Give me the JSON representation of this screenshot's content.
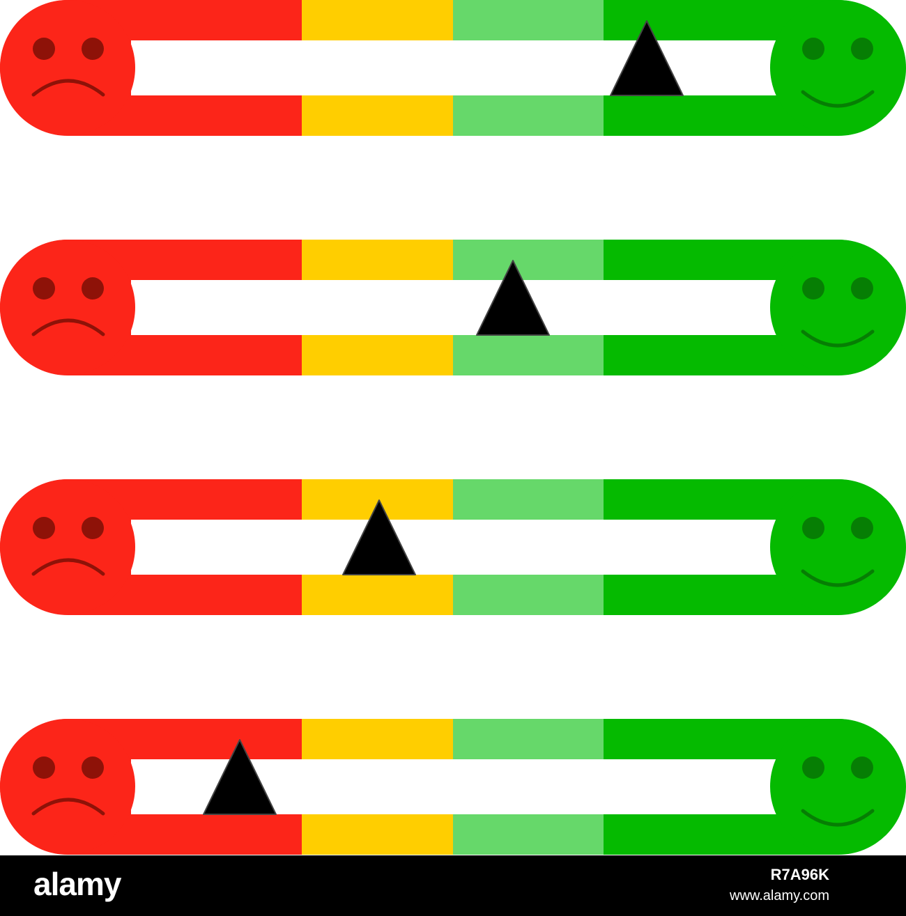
{
  "palette": {
    "red": "#fc2519",
    "yellow": "#ffce00",
    "light_green": "#66d86a",
    "green": "#05ba00",
    "sad_face_features": "#8e1208",
    "happy_face_features": "#067e04",
    "track": "#ffffff",
    "pointer": "#000000"
  },
  "icons": {
    "left": "sad-face-icon",
    "right": "happy-face-icon",
    "pointer": "triangle-pointer-icon"
  },
  "segments": [
    "red",
    "yellow",
    "light_green",
    "green"
  ],
  "meters": [
    {
      "pointer_level": 0.86
    },
    {
      "pointer_level": 0.62
    },
    {
      "pointer_level": 0.38
    },
    {
      "pointer_level": 0.13
    }
  ],
  "footer": {
    "brand": "alamy",
    "image_id": "R7A96K",
    "url": "www.alamy.com"
  }
}
